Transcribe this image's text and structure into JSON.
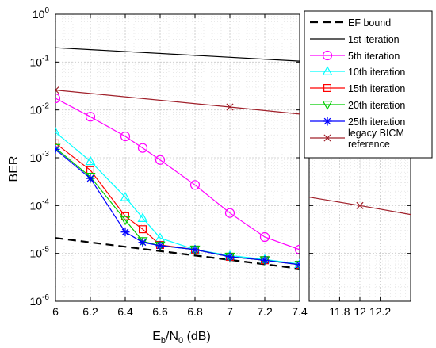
{
  "chart_data": {
    "type": "line",
    "ylabel": "BER",
    "xlabel": {
      "base": "E",
      "sub1": "b",
      "mid": "/N",
      "sub2": "0",
      "tail": " (dB)"
    },
    "yscale": "log",
    "ylim": [
      1e-06,
      1
    ],
    "yticks": [
      {
        "value": 1e-06,
        "exp": "-6"
      },
      {
        "value": 1e-05,
        "exp": "-5"
      },
      {
        "value": 0.0001,
        "exp": "-4"
      },
      {
        "value": 0.001,
        "exp": "-3"
      },
      {
        "value": 0.01,
        "exp": "-2"
      },
      {
        "value": 0.1,
        "exp": "-1"
      },
      {
        "value": 1,
        "exp": "0"
      }
    ],
    "ytick_base": "10",
    "panels": [
      {
        "xlim": [
          6,
          7.4
        ],
        "xticks": [
          {
            "value": 6,
            "label": "6"
          },
          {
            "value": 6.2,
            "label": "6.2"
          },
          {
            "value": 6.4,
            "label": "6.4"
          },
          {
            "value": 6.6,
            "label": "6.6"
          },
          {
            "value": 6.8,
            "label": "6.8"
          },
          {
            "value": 7,
            "label": "7"
          },
          {
            "value": 7.2,
            "label": "7.2"
          },
          {
            "value": 7.4,
            "label": "7.4"
          }
        ]
      },
      {
        "xlim": [
          11.5,
          12.5
        ],
        "xticks": [
          {
            "value": 11.8,
            "label": "11.8"
          },
          {
            "value": 12,
            "label": "12"
          },
          {
            "value": 12.2,
            "label": "12.2"
          }
        ]
      }
    ],
    "grid": true,
    "legend_position": "top-right",
    "series": [
      {
        "name": "EF bound",
        "color": "#000000",
        "marker": "none",
        "dashed": true,
        "points": [
          [
            6,
            2.1e-05
          ],
          [
            7.4,
            4.8e-06
          ]
        ]
      },
      {
        "name": "1st iteration",
        "color": "#000000",
        "marker": "none",
        "dashed": false,
        "points": [
          [
            6,
            0.2
          ],
          [
            7.4,
            0.105
          ]
        ]
      },
      {
        "name": "5th iteration",
        "color": "#ff00ff",
        "marker": "circle",
        "dashed": false,
        "points": [
          [
            6,
            0.0175
          ],
          [
            6.2,
            0.0072
          ],
          [
            6.4,
            0.0028
          ],
          [
            6.5,
            0.0016
          ],
          [
            6.6,
            0.0009
          ],
          [
            6.8,
            0.00027
          ],
          [
            7,
            7e-05
          ],
          [
            7.2,
            2.2e-05
          ],
          [
            7.4,
            1.2e-05
          ]
        ]
      },
      {
        "name": "10th iteration",
        "color": "#00ffff",
        "marker": "triangle",
        "dashed": false,
        "points": [
          [
            6,
            0.0034
          ],
          [
            6.2,
            0.00085
          ],
          [
            6.4,
            0.00015
          ],
          [
            6.5,
            5.5e-05
          ],
          [
            6.6,
            2.1e-05
          ],
          [
            6.8,
            1.2e-05
          ],
          [
            7,
            9e-06
          ],
          [
            7.2,
            7.5e-06
          ],
          [
            7.4,
            6e-06
          ]
        ]
      },
      {
        "name": "15th iteration",
        "color": "#ff0000",
        "marker": "square",
        "dashed": false,
        "points": [
          [
            6,
            0.002
          ],
          [
            6.2,
            0.00055
          ],
          [
            6.4,
            6e-05
          ],
          [
            6.5,
            3.2e-05
          ],
          [
            6.6,
            1.5e-05
          ],
          [
            6.8,
            1.2e-05
          ],
          [
            7,
            8.5e-06
          ],
          [
            7.2,
            7.2e-06
          ],
          [
            7.4,
            5.8e-06
          ]
        ]
      },
      {
        "name": "20th iteration",
        "color": "#00cc00",
        "marker": "triangle-down",
        "dashed": false,
        "points": [
          [
            6,
            0.0016
          ],
          [
            6.2,
            0.0004
          ],
          [
            6.4,
            5e-05
          ],
          [
            6.5,
            1.8e-05
          ],
          [
            6.6,
            1.45e-05
          ],
          [
            6.8,
            1.2e-05
          ],
          [
            7,
            8.5e-06
          ],
          [
            7.2,
            7.2e-06
          ],
          [
            7.4,
            5.8e-06
          ]
        ]
      },
      {
        "name": "25th iteration",
        "color": "#0000ff",
        "marker": "star",
        "dashed": false,
        "points": [
          [
            6,
            0.0015
          ],
          [
            6.2,
            0.00037
          ],
          [
            6.4,
            2.8e-05
          ],
          [
            6.5,
            1.7e-05
          ],
          [
            6.6,
            1.45e-05
          ],
          [
            6.8,
            1.2e-05
          ],
          [
            7,
            8.5e-06
          ],
          [
            7.2,
            7.2e-06
          ],
          [
            7.4,
            5.8e-06
          ]
        ]
      },
      {
        "name": "legacy BICM reference",
        "color": "#a0202a",
        "marker": "x",
        "dashed": false,
        "points": [
          [
            6,
            0.026
          ],
          [
            7,
            0.0115
          ],
          [
            7.4,
            0.0082
          ],
          [
            11.5,
            0.00015
          ],
          [
            12,
            0.0001
          ],
          [
            12.5,
            6.5e-05
          ]
        ]
      }
    ],
    "legend_label_lines": [
      [
        "EF bound"
      ],
      [
        "1st iteration"
      ],
      [
        "5th iteration"
      ],
      [
        "10th iteration"
      ],
      [
        "15th iteration"
      ],
      [
        "20th iteration"
      ],
      [
        "25th iteration"
      ],
      [
        "legacy BICM",
        "reference"
      ]
    ]
  }
}
